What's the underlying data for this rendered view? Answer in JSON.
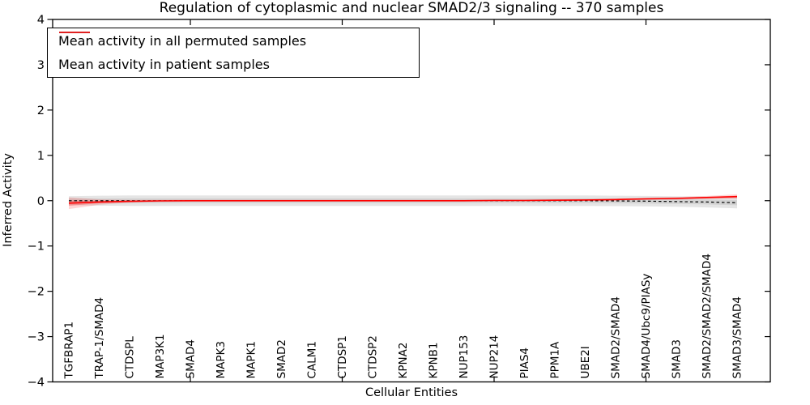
{
  "title": "Regulation of cytoplasmic and nuclear SMAD2/3 signaling -- 370 samples",
  "axes": {
    "ylabel": "Inferred Activity",
    "xlabel": "Cellular Entities"
  },
  "legend": {
    "items": [
      {
        "label": "Mean activity in all permuted samples",
        "color": "#000000"
      },
      {
        "label": "Mean activity in patient samples",
        "color": "#ff0000"
      }
    ]
  },
  "chart_data": {
    "type": "line",
    "title": "Regulation of cytoplasmic and nuclear SMAD2/3 signaling -- 370 samples",
    "xlabel": "Cellular Entities",
    "ylabel": "Inferred Activity",
    "ylim": [
      -4,
      4
    ],
    "ytick_labels": [
      "4",
      "3",
      "2",
      "1",
      "0",
      "−1",
      "−2",
      "−3",
      "−4"
    ],
    "ytick_values": [
      4,
      3,
      2,
      1,
      0,
      -1,
      -2,
      -3,
      -4
    ],
    "top_tick_indices": [
      4,
      9,
      14,
      19
    ],
    "grid": false,
    "legend_position": "upper left",
    "categories": [
      "TGFBRAP1",
      "TRAP-1/SMAD4",
      "CTDSPL",
      "MAP3K1",
      "SMAD4",
      "MAPK3",
      "MAPK1",
      "SMAD2",
      "CALM1",
      "CTDSP1",
      "CTDSP2",
      "KPNA2",
      "KPNB1",
      "NUP153",
      "NUP214",
      "PIAS4",
      "PPM1A",
      "UBE2I",
      "SMAD2/SMAD4",
      "SMAD4/Ubc9/PIASy",
      "SMAD3",
      "SMAD2/SMAD2/SMAD4",
      "SMAD3/SMAD4"
    ],
    "series": [
      {
        "name": "Mean activity in all permuted samples",
        "color": "#000000",
        "style": "dashed",
        "values": [
          0,
          0,
          0,
          0,
          0,
          0,
          0,
          0,
          0,
          0,
          0,
          0,
          0,
          0,
          0,
          0,
          0,
          0,
          -0.005,
          -0.01,
          -0.02,
          -0.03,
          -0.045
        ],
        "band": [
          0.1,
          0.11,
          0.115,
          0.115,
          0.115,
          0.115,
          0.115,
          0.115,
          0.115,
          0.115,
          0.115,
          0.115,
          0.115,
          0.115,
          0.115,
          0.115,
          0.115,
          0.115,
          0.115,
          0.115,
          0.115,
          0.12,
          0.125
        ],
        "band_color": "0,0,0",
        "band_alpha_outer": 0.1,
        "band_alpha_inner": 0.08
      },
      {
        "name": "Mean activity in patient samples",
        "color": "#ff0000",
        "style": "solid",
        "values": [
          -0.055,
          -0.03,
          -0.015,
          -0.005,
          0,
          0,
          0,
          0,
          0,
          0,
          0,
          0,
          0,
          0,
          0.005,
          0.005,
          0.01,
          0.015,
          0.025,
          0.04,
          0.05,
          0.07,
          0.09
        ],
        "band": [
          0.13,
          0.06,
          0.03,
          0.022,
          0.02,
          0.02,
          0.02,
          0.02,
          0.02,
          0.02,
          0.02,
          0.02,
          0.02,
          0.02,
          0.02,
          0.02,
          0.02,
          0.02,
          0.022,
          0.025,
          0.03,
          0.035,
          0.05
        ],
        "band_color": "255,0,0",
        "band_alpha_outer": 0.16,
        "band_alpha_inner": 0.24
      }
    ]
  }
}
